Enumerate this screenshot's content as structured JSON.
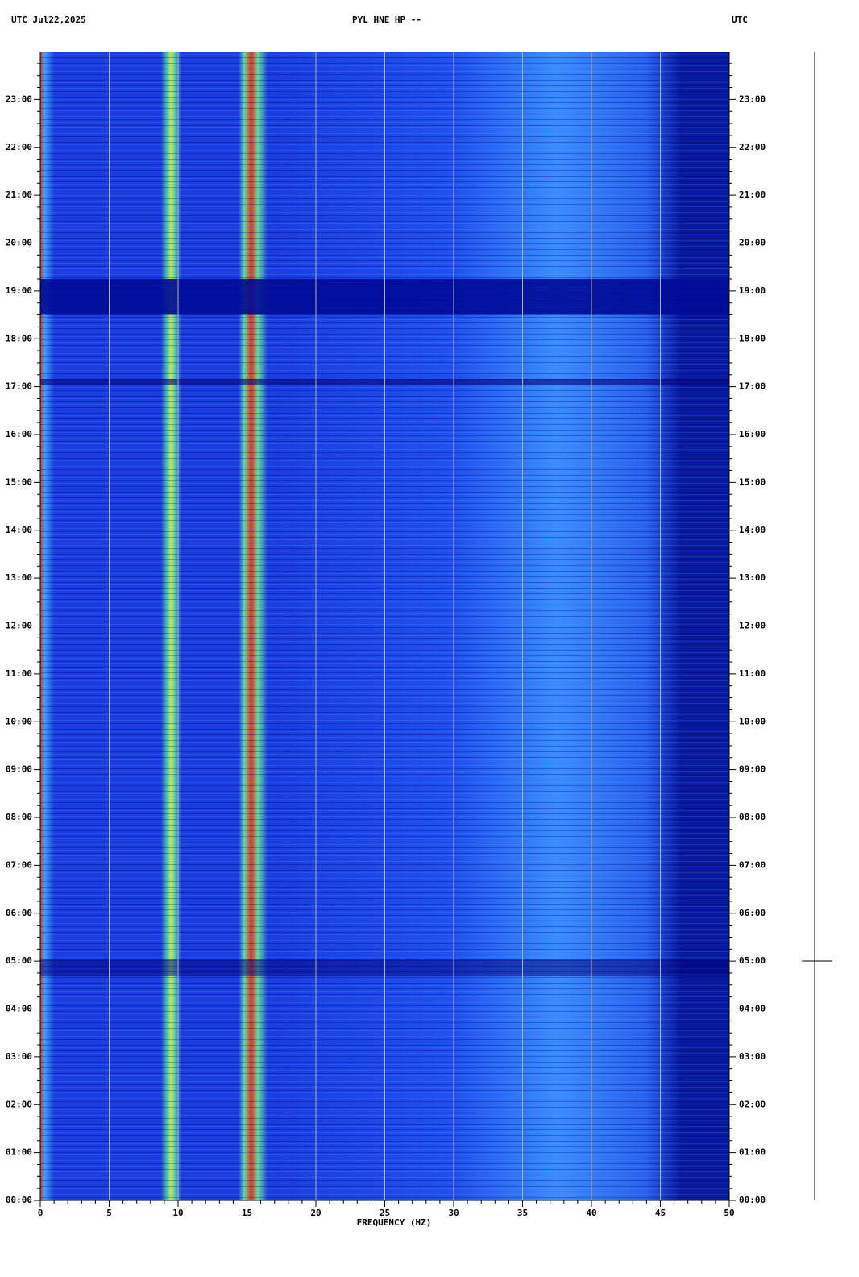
{
  "chart_data": {
    "type": "spectrogram",
    "title": "PYL HNE HP --",
    "left_header": "UTC  Jul22,2025",
    "right_header": "UTC",
    "xlabel": "FREQUENCY (HZ)",
    "xlim": [
      0,
      50
    ],
    "xticks": [
      0,
      5,
      10,
      15,
      20,
      25,
      30,
      35,
      40,
      45,
      50
    ],
    "ylim": [
      0,
      24
    ],
    "yticks": [
      {
        "value": 0,
        "label": "00:00"
      },
      {
        "value": 1,
        "label": "01:00"
      },
      {
        "value": 2,
        "label": "02:00"
      },
      {
        "value": 3,
        "label": "03:00"
      },
      {
        "value": 4,
        "label": "04:00"
      },
      {
        "value": 5,
        "label": "05:00"
      },
      {
        "value": 6,
        "label": "06:00"
      },
      {
        "value": 7,
        "label": "07:00"
      },
      {
        "value": 8,
        "label": "08:00"
      },
      {
        "value": 9,
        "label": "09:00"
      },
      {
        "value": 10,
        "label": "10:00"
      },
      {
        "value": 11,
        "label": "11:00"
      },
      {
        "value": 12,
        "label": "12:00"
      },
      {
        "value": 13,
        "label": "13:00"
      },
      {
        "value": 14,
        "label": "14:00"
      },
      {
        "value": 15,
        "label": "15:00"
      },
      {
        "value": 16,
        "label": "16:00"
      },
      {
        "value": 17,
        "label": "17:00"
      },
      {
        "value": 18,
        "label": "18:00"
      },
      {
        "value": 19,
        "label": "19:00"
      },
      {
        "value": 20,
        "label": "20:00"
      },
      {
        "value": 21,
        "label": "21:00"
      },
      {
        "value": 22,
        "label": "22:00"
      },
      {
        "value": 23,
        "label": "23:00"
      }
    ],
    "grid": true
  }
}
